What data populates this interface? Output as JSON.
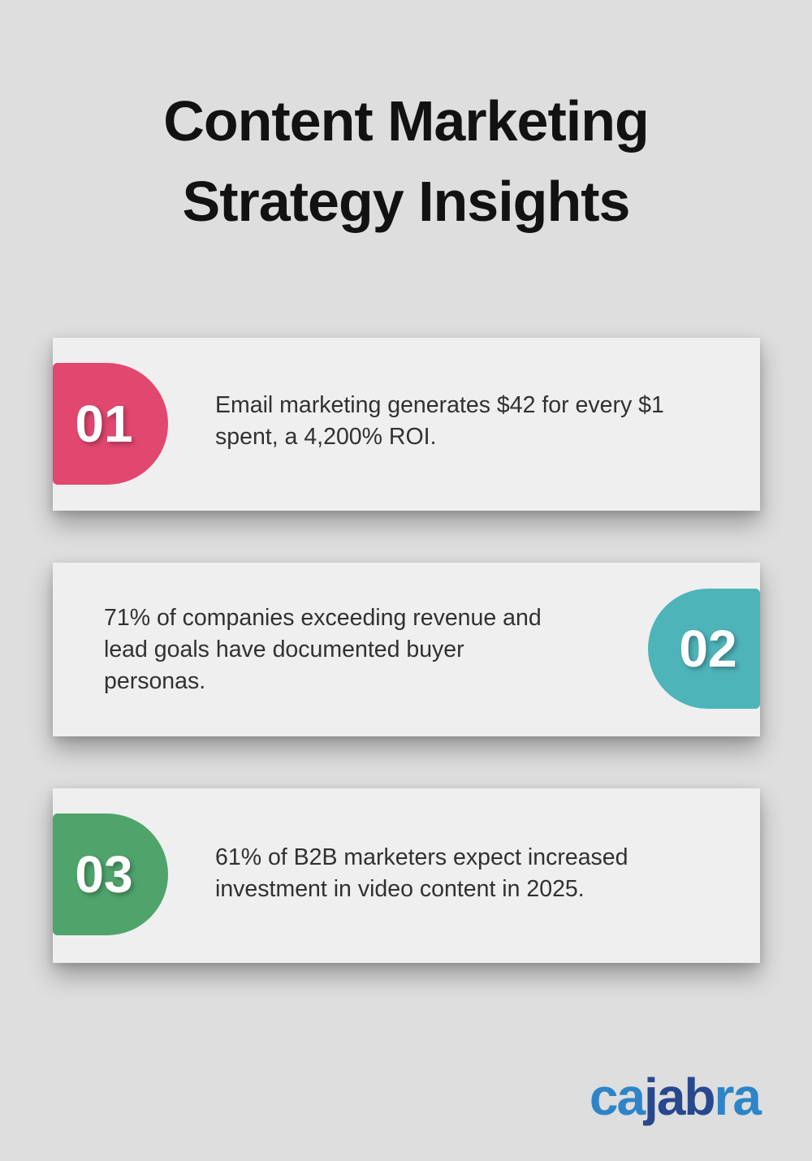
{
  "title": {
    "line1": "Content Marketing",
    "line2": "Strategy Insights"
  },
  "cards": [
    {
      "number": "01",
      "badge_color": "#e2476f",
      "badge_side": "left",
      "lines": [
        "Email marketing generates $42 for every $1",
        "spent, a 4,200% ROI."
      ]
    },
    {
      "number": "02",
      "badge_color": "#4db4ba",
      "badge_side": "right",
      "lines": [
        "71% of companies exceeding revenue and",
        "lead goals have documented buyer",
        "personas."
      ]
    },
    {
      "number": "03",
      "badge_color": "#4fa46c",
      "badge_side": "left",
      "lines": [
        "61% of B2B marketers expect increased",
        "investment in video content in 2025."
      ]
    }
  ],
  "logo": {
    "name": "cajabra",
    "segments": [
      {
        "text": "ca",
        "color": "#2d85c7"
      },
      {
        "text": "jab",
        "color": "#27488e"
      },
      {
        "text": "ra",
        "color": "#2d85c7"
      }
    ]
  },
  "colors": {
    "page_background": "#dedede",
    "card_background": "#efefef",
    "title_text": "#121212",
    "body_text": "#313131"
  }
}
